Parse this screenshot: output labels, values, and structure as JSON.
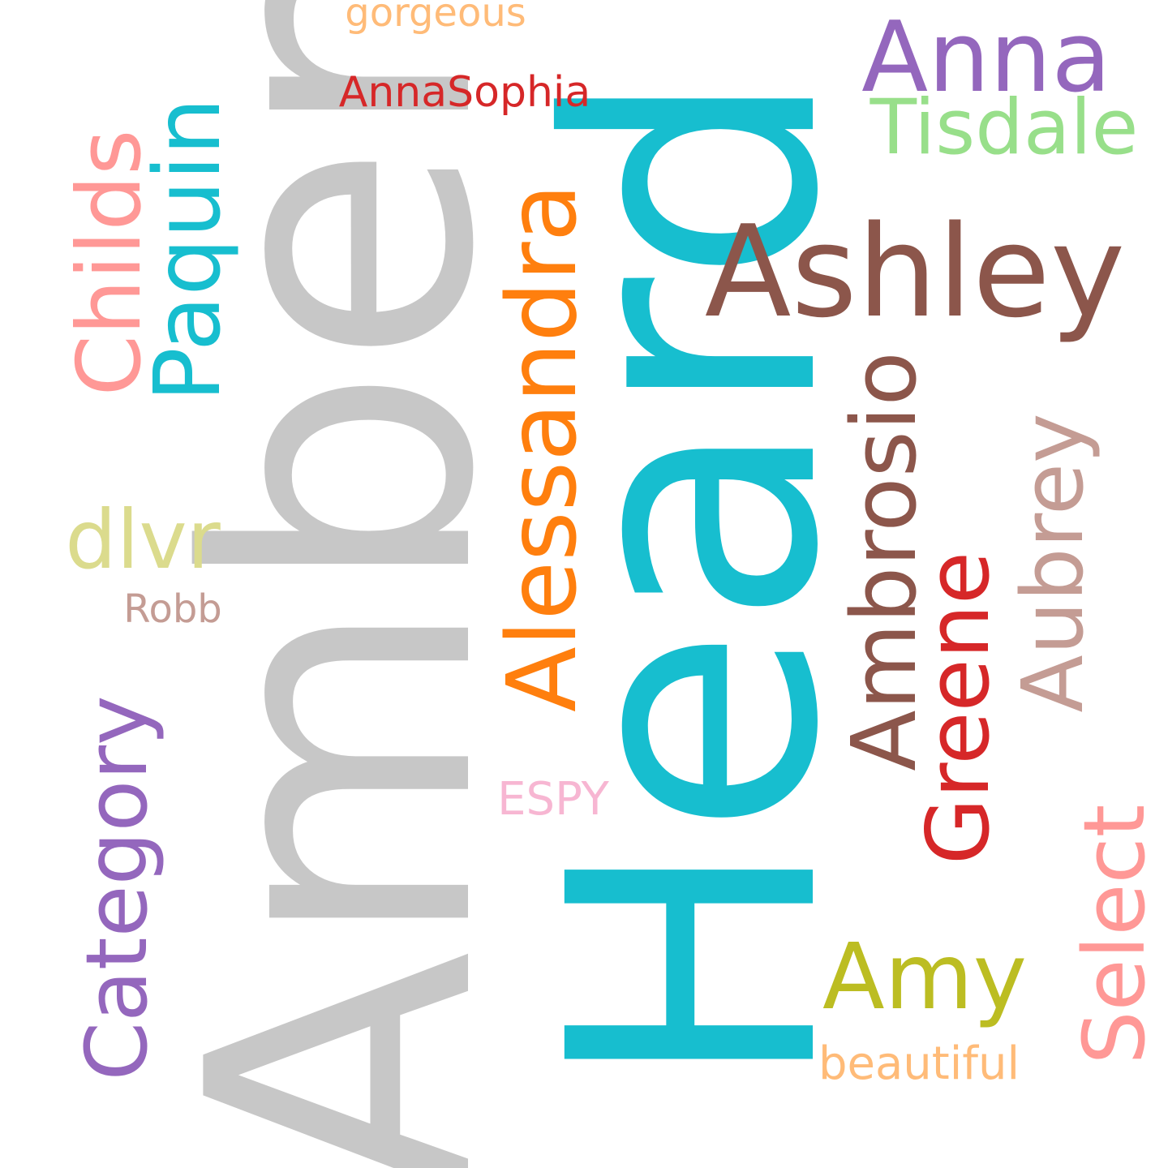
{
  "words": [
    {
      "text": "Amber",
      "color": "#c7c7c7"
    },
    {
      "text": "Heard",
      "color": "#17becf"
    },
    {
      "text": "Ashley",
      "color": "#8c564b"
    },
    {
      "text": "Alessandra",
      "color": "#ff7f0e"
    },
    {
      "text": "Anna",
      "color": "#9467bd"
    },
    {
      "text": "Tisdale",
      "color": "#98df8a"
    },
    {
      "text": "Paquin",
      "color": "#17becf"
    },
    {
      "text": "Childs",
      "color": "#ff9896"
    },
    {
      "text": "Ambrosio",
      "color": "#8c564b"
    },
    {
      "text": "Greene",
      "color": "#d62728"
    },
    {
      "text": "Aubrey",
      "color": "#c49c94"
    },
    {
      "text": "Category",
      "color": "#9467bd"
    },
    {
      "text": "Select",
      "color": "#ff9896"
    },
    {
      "text": "Amy",
      "color": "#bcbd22"
    },
    {
      "text": "dlvr",
      "color": "#dbdb8d"
    },
    {
      "text": "beautiful",
      "color": "#ffbb78"
    },
    {
      "text": "ESPY",
      "color": "#f7b6d2"
    },
    {
      "text": "Robb",
      "color": "#c49c94"
    },
    {
      "text": "AnnaSophia",
      "color": "#d62728"
    },
    {
      "text": "gorgeous",
      "color": "#ffbb78"
    }
  ]
}
